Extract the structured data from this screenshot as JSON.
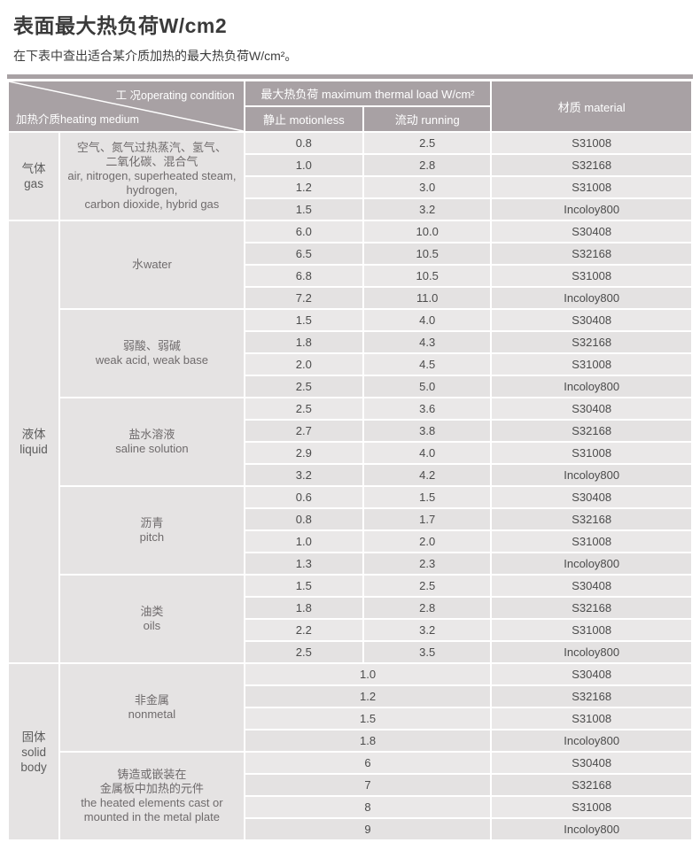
{
  "page": {
    "title": "表面最大热负荷W/cm2",
    "subtitle": "在下表中查出适合某介质加热的最大热负荷W/cm²。"
  },
  "colors": {
    "header_bg": "#a8a1a4",
    "divider_bar": "#a8a1a4",
    "row_bg_light": "#eae8e8",
    "row_bg_dark": "#e4e2e2",
    "label_cell_bg": "#e5e3e3",
    "text_dark": "#3a3a3a",
    "text_value": "#4c4c4c",
    "header_text": "#ffffff"
  },
  "table": {
    "header": {
      "corner_top": "工 况operating condition",
      "corner_bottom": "加热介质heating medium",
      "load": "最大热负荷 maximum thermal load W/cm²",
      "motionless": "静止 motionless",
      "running": "流动 running",
      "material": "材质 material"
    },
    "groups": [
      {
        "category_lines": [
          "气体",
          "gas"
        ],
        "mediums": [
          {
            "label_lines": [
              "空气、氮气过热蒸汽、氢气、",
              "二氧化碳、混合气",
              "air, nitrogen, superheated steam,",
              "hydrogen,",
              "carbon dioxide, hybrid gas"
            ],
            "rows": [
              {
                "motionless": "0.8",
                "running": "2.5",
                "material": "S31008"
              },
              {
                "motionless": "1.0",
                "running": "2.8",
                "material": "S32168"
              },
              {
                "motionless": "1.2",
                "running": "3.0",
                "material": "S31008"
              },
              {
                "motionless": "1.5",
                "running": "3.2",
                "material": "Incoloy800"
              }
            ]
          }
        ]
      },
      {
        "category_lines": [
          "液体",
          "liquid"
        ],
        "mediums": [
          {
            "label_lines": [
              "水water"
            ],
            "rows": [
              {
                "motionless": "6.0",
                "running": "10.0",
                "material": "S30408"
              },
              {
                "motionless": "6.5",
                "running": "10.5",
                "material": "S32168"
              },
              {
                "motionless": "6.8",
                "running": "10.5",
                "material": "S31008"
              },
              {
                "motionless": "7.2",
                "running": "11.0",
                "material": "Incoloy800"
              }
            ]
          },
          {
            "label_lines": [
              "弱酸、弱碱",
              "weak acid, weak base"
            ],
            "rows": [
              {
                "motionless": "1.5",
                "running": "4.0",
                "material": "S30408"
              },
              {
                "motionless": "1.8",
                "running": "4.3",
                "material": "S32168"
              },
              {
                "motionless": "2.0",
                "running": "4.5",
                "material": "S31008"
              },
              {
                "motionless": "2.5",
                "running": "5.0",
                "material": "Incoloy800"
              }
            ]
          },
          {
            "label_lines": [
              "盐水溶液",
              "saline solution"
            ],
            "rows": [
              {
                "motionless": "2.5",
                "running": "3.6",
                "material": "S30408"
              },
              {
                "motionless": "2.7",
                "running": "3.8",
                "material": "S32168"
              },
              {
                "motionless": "2.9",
                "running": "4.0",
                "material": "S31008"
              },
              {
                "motionless": "3.2",
                "running": "4.2",
                "material": "Incoloy800"
              }
            ]
          },
          {
            "label_lines": [
              "沥青",
              "pitch"
            ],
            "rows": [
              {
                "motionless": "0.6",
                "running": "1.5",
                "material": "S30408"
              },
              {
                "motionless": "0.8",
                "running": "1.7",
                "material": "S32168"
              },
              {
                "motionless": "1.0",
                "running": "2.0",
                "material": "S31008"
              },
              {
                "motionless": "1.3",
                "running": "2.3",
                "material": "Incoloy800"
              }
            ]
          },
          {
            "label_lines": [
              "油类",
              "oils"
            ],
            "rows": [
              {
                "motionless": "1.5",
                "running": "2.5",
                "material": "S30408"
              },
              {
                "motionless": "1.8",
                "running": "2.8",
                "material": "S32168"
              },
              {
                "motionless": "2.2",
                "running": "3.2",
                "material": "S31008"
              },
              {
                "motionless": "2.5",
                "running": "3.5",
                "material": "Incoloy800"
              }
            ]
          }
        ]
      },
      {
        "category_lines": [
          "固体",
          "solid",
          "body"
        ],
        "mediums": [
          {
            "label_lines": [
              "非金属",
              "nonmetal"
            ],
            "rows": [
              {
                "value": "1.0",
                "material": "S30408"
              },
              {
                "value": "1.2",
                "material": "S32168"
              },
              {
                "value": "1.5",
                "material": "S31008"
              },
              {
                "value": "1.8",
                "material": "Incoloy800"
              }
            ]
          },
          {
            "label_lines": [
              "铸造或嵌装在",
              "金属板中加热的元件",
              "the heated elements cast or",
              "mounted in the metal plate"
            ],
            "rows": [
              {
                "value": "6",
                "material": "S30408"
              },
              {
                "value": "7",
                "material": "S32168"
              },
              {
                "value": "8",
                "material": "S31008"
              },
              {
                "value": "9",
                "material": "Incoloy800"
              }
            ]
          }
        ]
      }
    ]
  }
}
